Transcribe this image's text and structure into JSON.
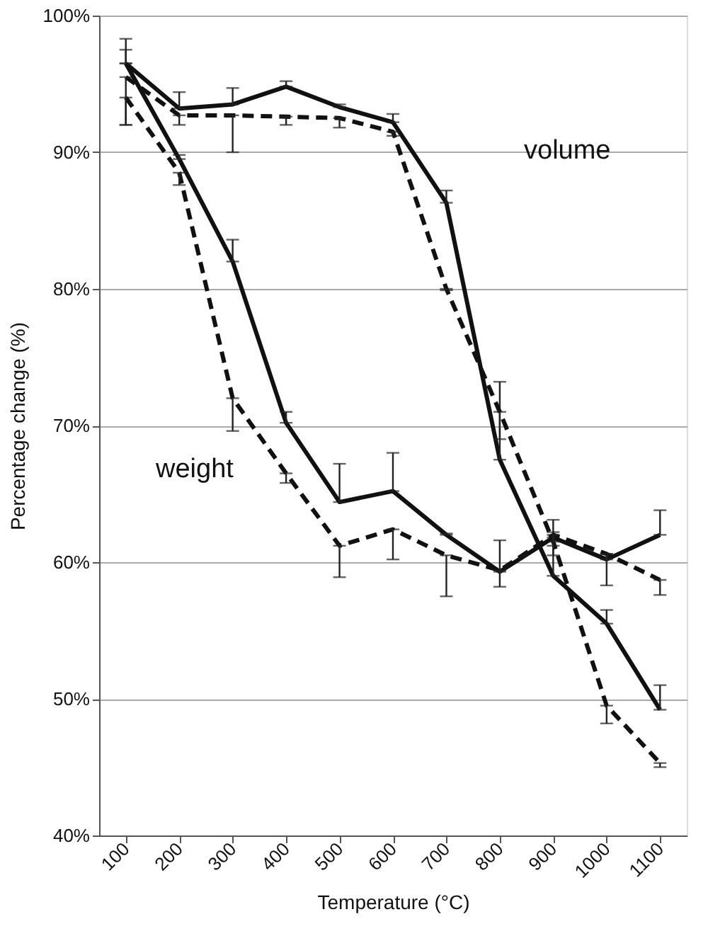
{
  "chart_data": {
    "type": "line",
    "xlabel": "Temperature (°C)",
    "ylabel": "Percentage change (%)",
    "categories": [
      "100",
      "200",
      "300",
      "400",
      "500",
      "600",
      "700",
      "800",
      "900",
      "1000",
      "1100"
    ],
    "ylim": [
      40,
      100
    ],
    "yticks": [
      {
        "value": 40,
        "label": "40%"
      },
      {
        "value": 50,
        "label": "50%"
      },
      {
        "value": 60,
        "label": "60%"
      },
      {
        "value": 70,
        "label": "70%"
      },
      {
        "value": 80,
        "label": "80%"
      },
      {
        "value": 90,
        "label": "90%"
      },
      {
        "value": 100,
        "label": "100%"
      }
    ],
    "grid": "y",
    "marker": "none",
    "series": [
      {
        "color": "#111111",
        "line_style": "solid",
        "values": [
          96.5,
          93.2,
          93.5,
          94.8,
          93.3,
          92.2,
          86.3,
          67.5,
          59,
          55.5,
          49.2
        ],
        "errors": [
          [
            96.5,
            98.3
          ],
          [
            93.2,
            94.4
          ],
          [
            93.5,
            94.7
          ],
          [
            94.8,
            95.2
          ],
          [
            93.3,
            93.5
          ],
          [
            92.2,
            92.8
          ],
          [
            86.3,
            87.2
          ],
          [
            67.5,
            73.2
          ],
          [
            59,
            62.2
          ],
          [
            55.5,
            56.5
          ],
          [
            49.2,
            51
          ]
        ]
      },
      {
        "color": "#111111",
        "line_style": "dashed",
        "values": [
          95.5,
          92.7,
          92.7,
          92.6,
          92.5,
          91.5,
          80,
          71,
          61.5,
          49.5,
          45.3
        ],
        "errors": [
          [
            92,
            95.5
          ],
          [
            92,
            92.7
          ],
          [
            90,
            92.7
          ],
          [
            92,
            92.6
          ],
          [
            91.8,
            92.5
          ],
          [
            91.2,
            91.5
          ],
          [
            79.9,
            80
          ],
          [
            69,
            71
          ],
          [
            60.5,
            61.5
          ],
          [
            48.2,
            49.5
          ],
          [
            45,
            45.3
          ]
        ]
      },
      {
        "color": "#111111",
        "line_style": "solid",
        "values": [
          96.5,
          89.5,
          82,
          70.2,
          64.4,
          65.2,
          62,
          59.3,
          61.8,
          60.2,
          62
        ],
        "errors": [
          [
            96.5,
            97.5
          ],
          [
            89.5,
            89.8
          ],
          [
            82,
            83.6
          ],
          [
            70.2,
            71
          ],
          [
            64.4,
            67.2
          ],
          [
            65.2,
            68
          ],
          [
            62,
            62.1
          ],
          [
            59.3,
            61.6
          ],
          [
            61.8,
            63.1
          ],
          [
            60.2,
            60.6
          ],
          [
            62,
            63.8
          ]
        ]
      },
      {
        "color": "#111111",
        "line_style": "dashed",
        "values": [
          94,
          88.5,
          72,
          66.5,
          61.2,
          62.4,
          60.5,
          59.4,
          62,
          60.6,
          58.7
        ],
        "errors": [
          [
            92,
            94
          ],
          [
            87.6,
            88.5
          ],
          [
            69.6,
            72
          ],
          [
            65.8,
            66.5
          ],
          [
            58.9,
            61.2
          ],
          [
            60.2,
            62.4
          ],
          [
            57.5,
            60.5
          ],
          [
            58.2,
            59.4
          ],
          [
            61.2,
            62
          ],
          [
            58.3,
            60.6
          ],
          [
            57.6,
            58.7
          ]
        ]
      }
    ],
    "annotations": [
      "volume",
      "weight"
    ]
  }
}
